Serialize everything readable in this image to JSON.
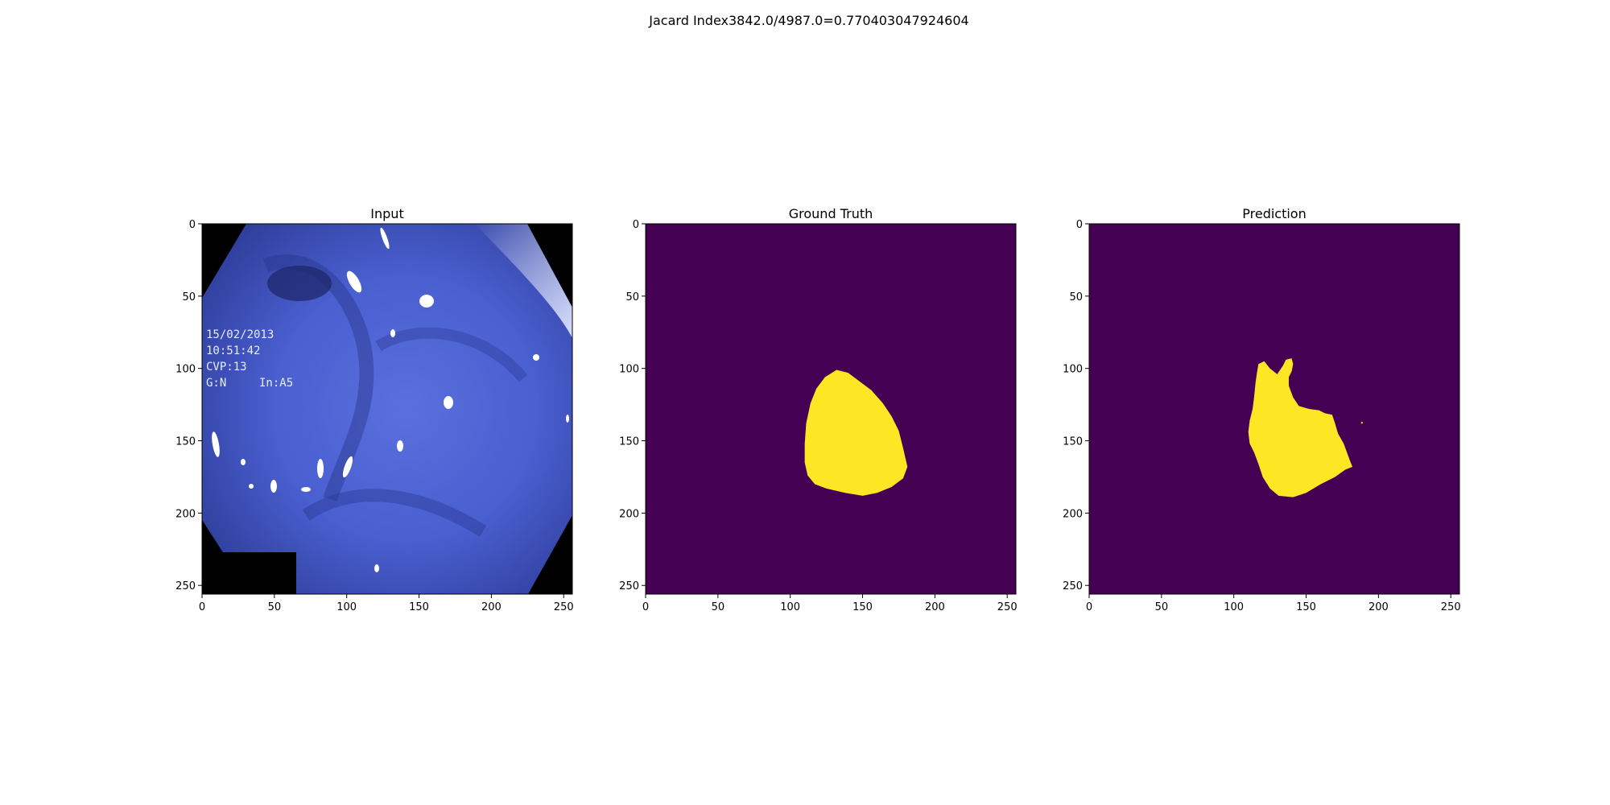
{
  "figure": {
    "suptitle": "Jacard Index3842.0/4987.0=0.770403047924604"
  },
  "chart_data": [
    {
      "type": "image",
      "title": "Input",
      "xlim": [
        0,
        256
      ],
      "ylim": [
        256,
        0
      ],
      "xticks": [
        0,
        50,
        100,
        150,
        200,
        250
      ],
      "yticks": [
        0,
        50,
        100,
        150,
        200,
        250
      ],
      "overlay_text": [
        "15/02/2013",
        "10:51:42",
        "CVP:13",
        "G:N",
        "In:A5"
      ],
      "colors": {
        "tissue": "#4a5fd0",
        "border": "#000000"
      }
    },
    {
      "type": "heatmap",
      "title": "Ground Truth",
      "xlim": [
        0,
        256
      ],
      "ylim": [
        256,
        0
      ],
      "xticks": [
        0,
        50,
        100,
        150,
        200,
        250
      ],
      "yticks": [
        0,
        50,
        100,
        150,
        200,
        250
      ],
      "colormap": "viridis",
      "colors": {
        "background": "#440154",
        "mask": "#fde725"
      },
      "mask_outline": [
        [
          132,
          101
        ],
        [
          140,
          103
        ],
        [
          148,
          109
        ],
        [
          156,
          115
        ],
        [
          164,
          124
        ],
        [
          170,
          133
        ],
        [
          175,
          143
        ],
        [
          178,
          155
        ],
        [
          181,
          168
        ],
        [
          178,
          176
        ],
        [
          170,
          182
        ],
        [
          160,
          186
        ],
        [
          150,
          188
        ],
        [
          138,
          186
        ],
        [
          125,
          183
        ],
        [
          117,
          180
        ],
        [
          112,
          174
        ],
        [
          110,
          165
        ],
        [
          110,
          152
        ],
        [
          111,
          138
        ],
        [
          114,
          124
        ],
        [
          118,
          114
        ],
        [
          124,
          106
        ]
      ]
    },
    {
      "type": "heatmap",
      "title": "Prediction",
      "xlim": [
        0,
        256
      ],
      "ylim": [
        256,
        0
      ],
      "xticks": [
        0,
        50,
        100,
        150,
        200,
        250
      ],
      "yticks": [
        0,
        50,
        100,
        150,
        200,
        250
      ],
      "colormap": "viridis",
      "colors": {
        "background": "#440154",
        "mask": "#fde725"
      },
      "mask_outline": [
        [
          117,
          97
        ],
        [
          121,
          95
        ],
        [
          125,
          100
        ],
        [
          130,
          104
        ],
        [
          134,
          98
        ],
        [
          136,
          94
        ],
        [
          140,
          93
        ],
        [
          141,
          97
        ],
        [
          140,
          102
        ],
        [
          138,
          106
        ],
        [
          138,
          112
        ],
        [
          141,
          120
        ],
        [
          145,
          126
        ],
        [
          152,
          128
        ],
        [
          159,
          129
        ],
        [
          163,
          131
        ],
        [
          168,
          132
        ],
        [
          170,
          138
        ],
        [
          172,
          145
        ],
        [
          176,
          152
        ],
        [
          180,
          163
        ],
        [
          182,
          168
        ],
        [
          177,
          170
        ],
        [
          170,
          175
        ],
        [
          160,
          180
        ],
        [
          150,
          186
        ],
        [
          141,
          189
        ],
        [
          131,
          188
        ],
        [
          125,
          183
        ],
        [
          120,
          175
        ],
        [
          117,
          166
        ],
        [
          114,
          158
        ],
        [
          111,
          152
        ],
        [
          110,
          144
        ],
        [
          111,
          136
        ],
        [
          113,
          128
        ],
        [
          114,
          120
        ],
        [
          115,
          110
        ],
        [
          116,
          103
        ]
      ],
      "mask_specks": [
        [
          188,
          137
        ]
      ]
    }
  ]
}
